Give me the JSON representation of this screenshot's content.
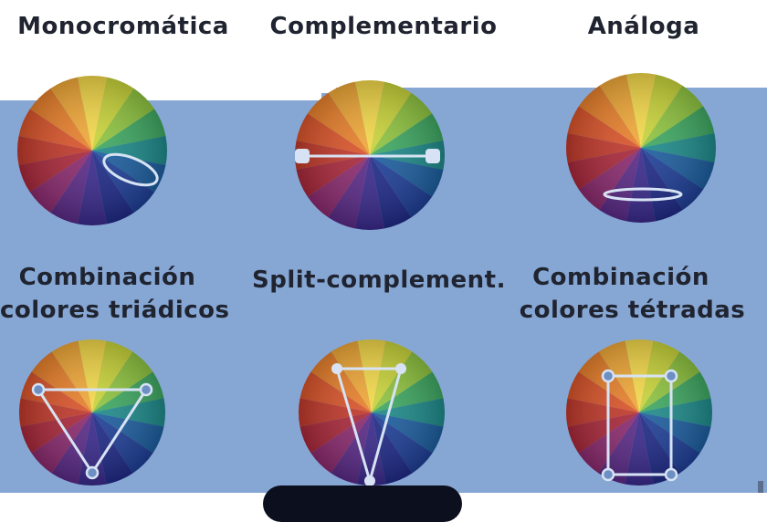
{
  "titles": {
    "mono": "Monocromática",
    "comp": "Complementario",
    "analog": "Análoga",
    "triad_1": "Combinación",
    "triad_2": "colores triádicos",
    "split": "Split-complement.",
    "tetrad_1": "Combinación",
    "tetrad_2": "colores tétradas"
  },
  "wheel_colors": [
    "#f4d94a",
    "#c9d43a",
    "#8fc440",
    "#3fa862",
    "#1f8a8a",
    "#1d5e9e",
    "#1f3f96",
    "#1f2a86",
    "#3a2a8c",
    "#5a2a86",
    "#8a2a6e",
    "#a8283a",
    "#c0392b",
    "#d9542a",
    "#e8802c",
    "#f0a838"
  ],
  "colors": {
    "overlay": "#86a6d4",
    "marker": "#d7e3f4"
  }
}
